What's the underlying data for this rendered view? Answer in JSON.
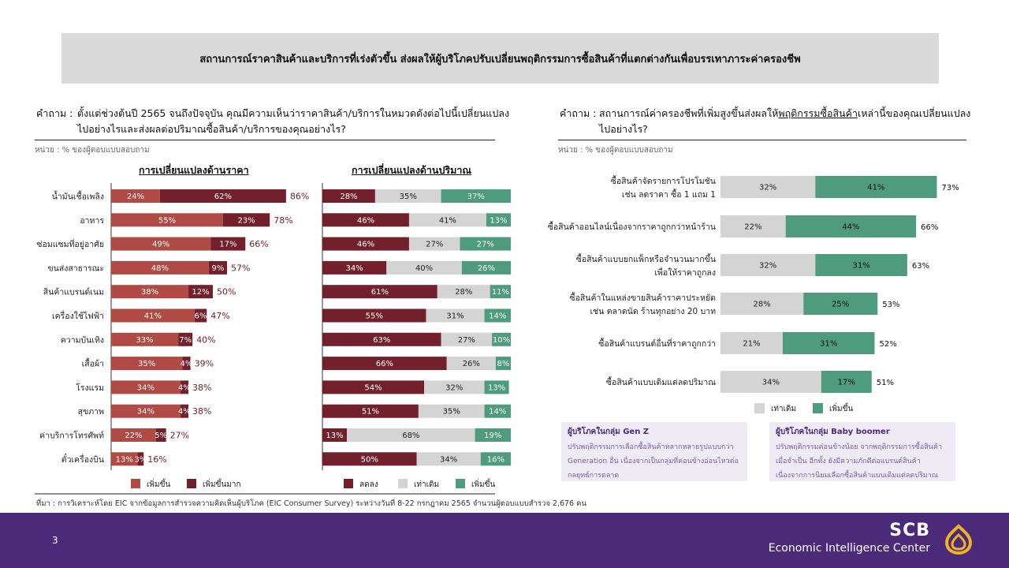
{
  "header": {
    "title": "สถานการณ์ราคาสินค้าและบริการที่เร่งตัวขึ้น  ส่งผลให้ผู้บริโภคปรับเปลี่ยนพฤติกรรมการซื้อสินค้าที่แตกต่างกันเพื่อบรรเทาภาระค่าครองชีพ"
  },
  "left": {
    "question_label": "คำถาม :",
    "question_line1": "ตั้งแต่ช่วงต้นปี 2565 จนถึงปัจจุบัน คุณมีความเห็นว่าราคาสินค้า/บริการในหมวดดังต่อไปนี้เปลี่ยนแปลง",
    "question_line2": "ไปอย่างไรและส่งผลต่อปริมาณซื้อสินค้า/บริการของคุณอย่างไร?",
    "unit": "หน่วย : % ของผู้ตอบแบบสอบถาม",
    "price_title": "การเปลี่ยนแปลงด้านราคา",
    "qty_title": "การเปลี่ยนแปลงด้านปริมาณ"
  },
  "right": {
    "question_label": "คำถาม :",
    "question_line1_a": "สถานการณ์ค่าครองชีพที่เพิ่มสูงขึ้นส่งผลให้",
    "question_line1_u": "พฤติกรรมซื้อสินค้า",
    "question_line1_b": "เหล่านี้ของคุณเปลี่ยนแปลง",
    "question_line2": "ไปอย่างไร?",
    "unit": "หน่วย : % ของผู้ตอบแบบสอบถาม"
  },
  "notes": {
    "genz_title": "ผู้บริโภคในกลุ่ม Gen Z",
    "genz_body": "ปรับพฤติกรรมการเลือกซื้อสินค้าหลากหลายรูปแบบกว่า Generation อื่น เนื่องจากเป็นกลุ่มที่ค่อนข้างอ่อนไหวต่อกลยุทธ์การตลาด",
    "boomer_title": "ผู้บริโภคในกลุ่ม Baby boomer",
    "boomer_body": "ปรับพฤติกรรมค่อนข้างน้อย จากพฤติกรรมการซื้อสินค้าเมื่อจำเป็น อีกทั้ง ยังมีความภักดีต่อแบรนด์สินค้า เนื่องจากการนิยมเลือกซื้อสินค้าแบบเดิมแต่ลดปริมาณ"
  },
  "source": "ที่มา : การวิเคราะห์โดย EIC จากข้อมูลการสำรวจความคิดเห็นผู้บริโภค (EIC Consumer Survey) ระหว่างวันที่ 8-22 กรกฎาคม 2565 จำนวนผู้ตอบแบบสำรวจ 2,676 คน",
  "footer": {
    "page": "3",
    "brand1": "SCB",
    "brand2": "Economic Intelligence Center"
  },
  "colors": {
    "rise": "#b04a44",
    "rise_much": "#72202b",
    "decrease": "#72202b",
    "same": "#d4d4d4",
    "increase": "#4f9b7e",
    "footer": "#4b2a7a",
    "logo": "#f0b323"
  },
  "chart_data": [
    {
      "type": "bar",
      "title": "การเปลี่ยนแปลงด้านราคา",
      "stacked": true,
      "orientation": "horizontal",
      "categories": [
        "น้ำมันเชื้อเพลิง",
        "อาหาร",
        "ซ่อมแซมที่อยู่อาศัย",
        "ขนส่งสาธารณะ",
        "สินค้าแบรนด์เนม",
        "เครื่องใช้ไฟฟ้า",
        "ความบันเทิง",
        "เสื้อผ้า",
        "โรงแรม",
        "สุขภาพ",
        "ค่าบริการโทรศัพท์",
        "ตั๋วเครื่องบิน"
      ],
      "series": [
        {
          "name": "เพิ่มขึ้น",
          "values": [
            24,
            55,
            49,
            48,
            38,
            41,
            33,
            35,
            34,
            34,
            22,
            13
          ]
        },
        {
          "name": "เพิ่มขึ้นมาก",
          "values": [
            62,
            23,
            17,
            9,
            12,
            6,
            7,
            4,
            4,
            4,
            5,
            3
          ]
        }
      ],
      "totals": [
        86,
        78,
        66,
        57,
        50,
        47,
        40,
        39,
        38,
        38,
        27,
        16
      ],
      "legend": "bottom"
    },
    {
      "type": "bar",
      "title": "การเปลี่ยนแปลงด้านปริมาณ",
      "stacked": true,
      "orientation": "horizontal",
      "categories": [
        "น้ำมันเชื้อเพลิง",
        "อาหาร",
        "ซ่อมแซมที่อยู่อาศัย",
        "ขนส่งสาธารณะ",
        "สินค้าแบรนด์เนม",
        "เครื่องใช้ไฟฟ้า",
        "ความบันเทิง",
        "เสื้อผ้า",
        "โรงแรม",
        "สุขภาพ",
        "ค่าบริการโทรศัพท์",
        "ตั๋วเครื่องบิน"
      ],
      "series": [
        {
          "name": "ลดลง",
          "values": [
            28,
            46,
            46,
            34,
            61,
            55,
            63,
            66,
            54,
            51,
            13,
            50
          ]
        },
        {
          "name": "เท่าเดิม",
          "values": [
            35,
            41,
            27,
            40,
            28,
            31,
            27,
            26,
            32,
            35,
            68,
            34
          ]
        },
        {
          "name": "เพิ่มขึ้น",
          "values": [
            37,
            13,
            27,
            26,
            11,
            14,
            10,
            8,
            13,
            14,
            19,
            16
          ]
        }
      ],
      "legend": "bottom"
    },
    {
      "type": "bar",
      "stacked": true,
      "orientation": "horizontal",
      "categories": [
        [
          "ซื้อสินค้าจัดรายการโปรโมชัน",
          "เช่น ลดราคา ซื้อ 1 แถม 1"
        ],
        [
          "ซื้อสินค้าออนไลน์เนื่องจากราคาถูกกว่าหน้าร้าน"
        ],
        [
          "ซื้อสินค้าแบบยกแพ็กหรือจำนวนมากขึ้น",
          "เพื่อให้ราคาถูกลง"
        ],
        [
          "ซื้อสินค้าในแหล่งขายสินค้าราคาประหยัด",
          "เช่น ตลาดนัด ร้านทุกอย่าง 20 บาท"
        ],
        [
          "ซื้อสินค้าแบรนด์อื่นที่ราคาถูกกว่า"
        ],
        [
          "ซื้อสินค้าแบบเดิมแต่ลดปริมาณ"
        ]
      ],
      "series": [
        {
          "name": "เท่าเดิม",
          "values": [
            32,
            22,
            32,
            28,
            21,
            34
          ]
        },
        {
          "name": "เพิ่มขึ้น",
          "values": [
            41,
            44,
            31,
            25,
            31,
            17
          ]
        }
      ],
      "totals": [
        73,
        66,
        63,
        53,
        52,
        51
      ],
      "legend": "bottom"
    }
  ]
}
